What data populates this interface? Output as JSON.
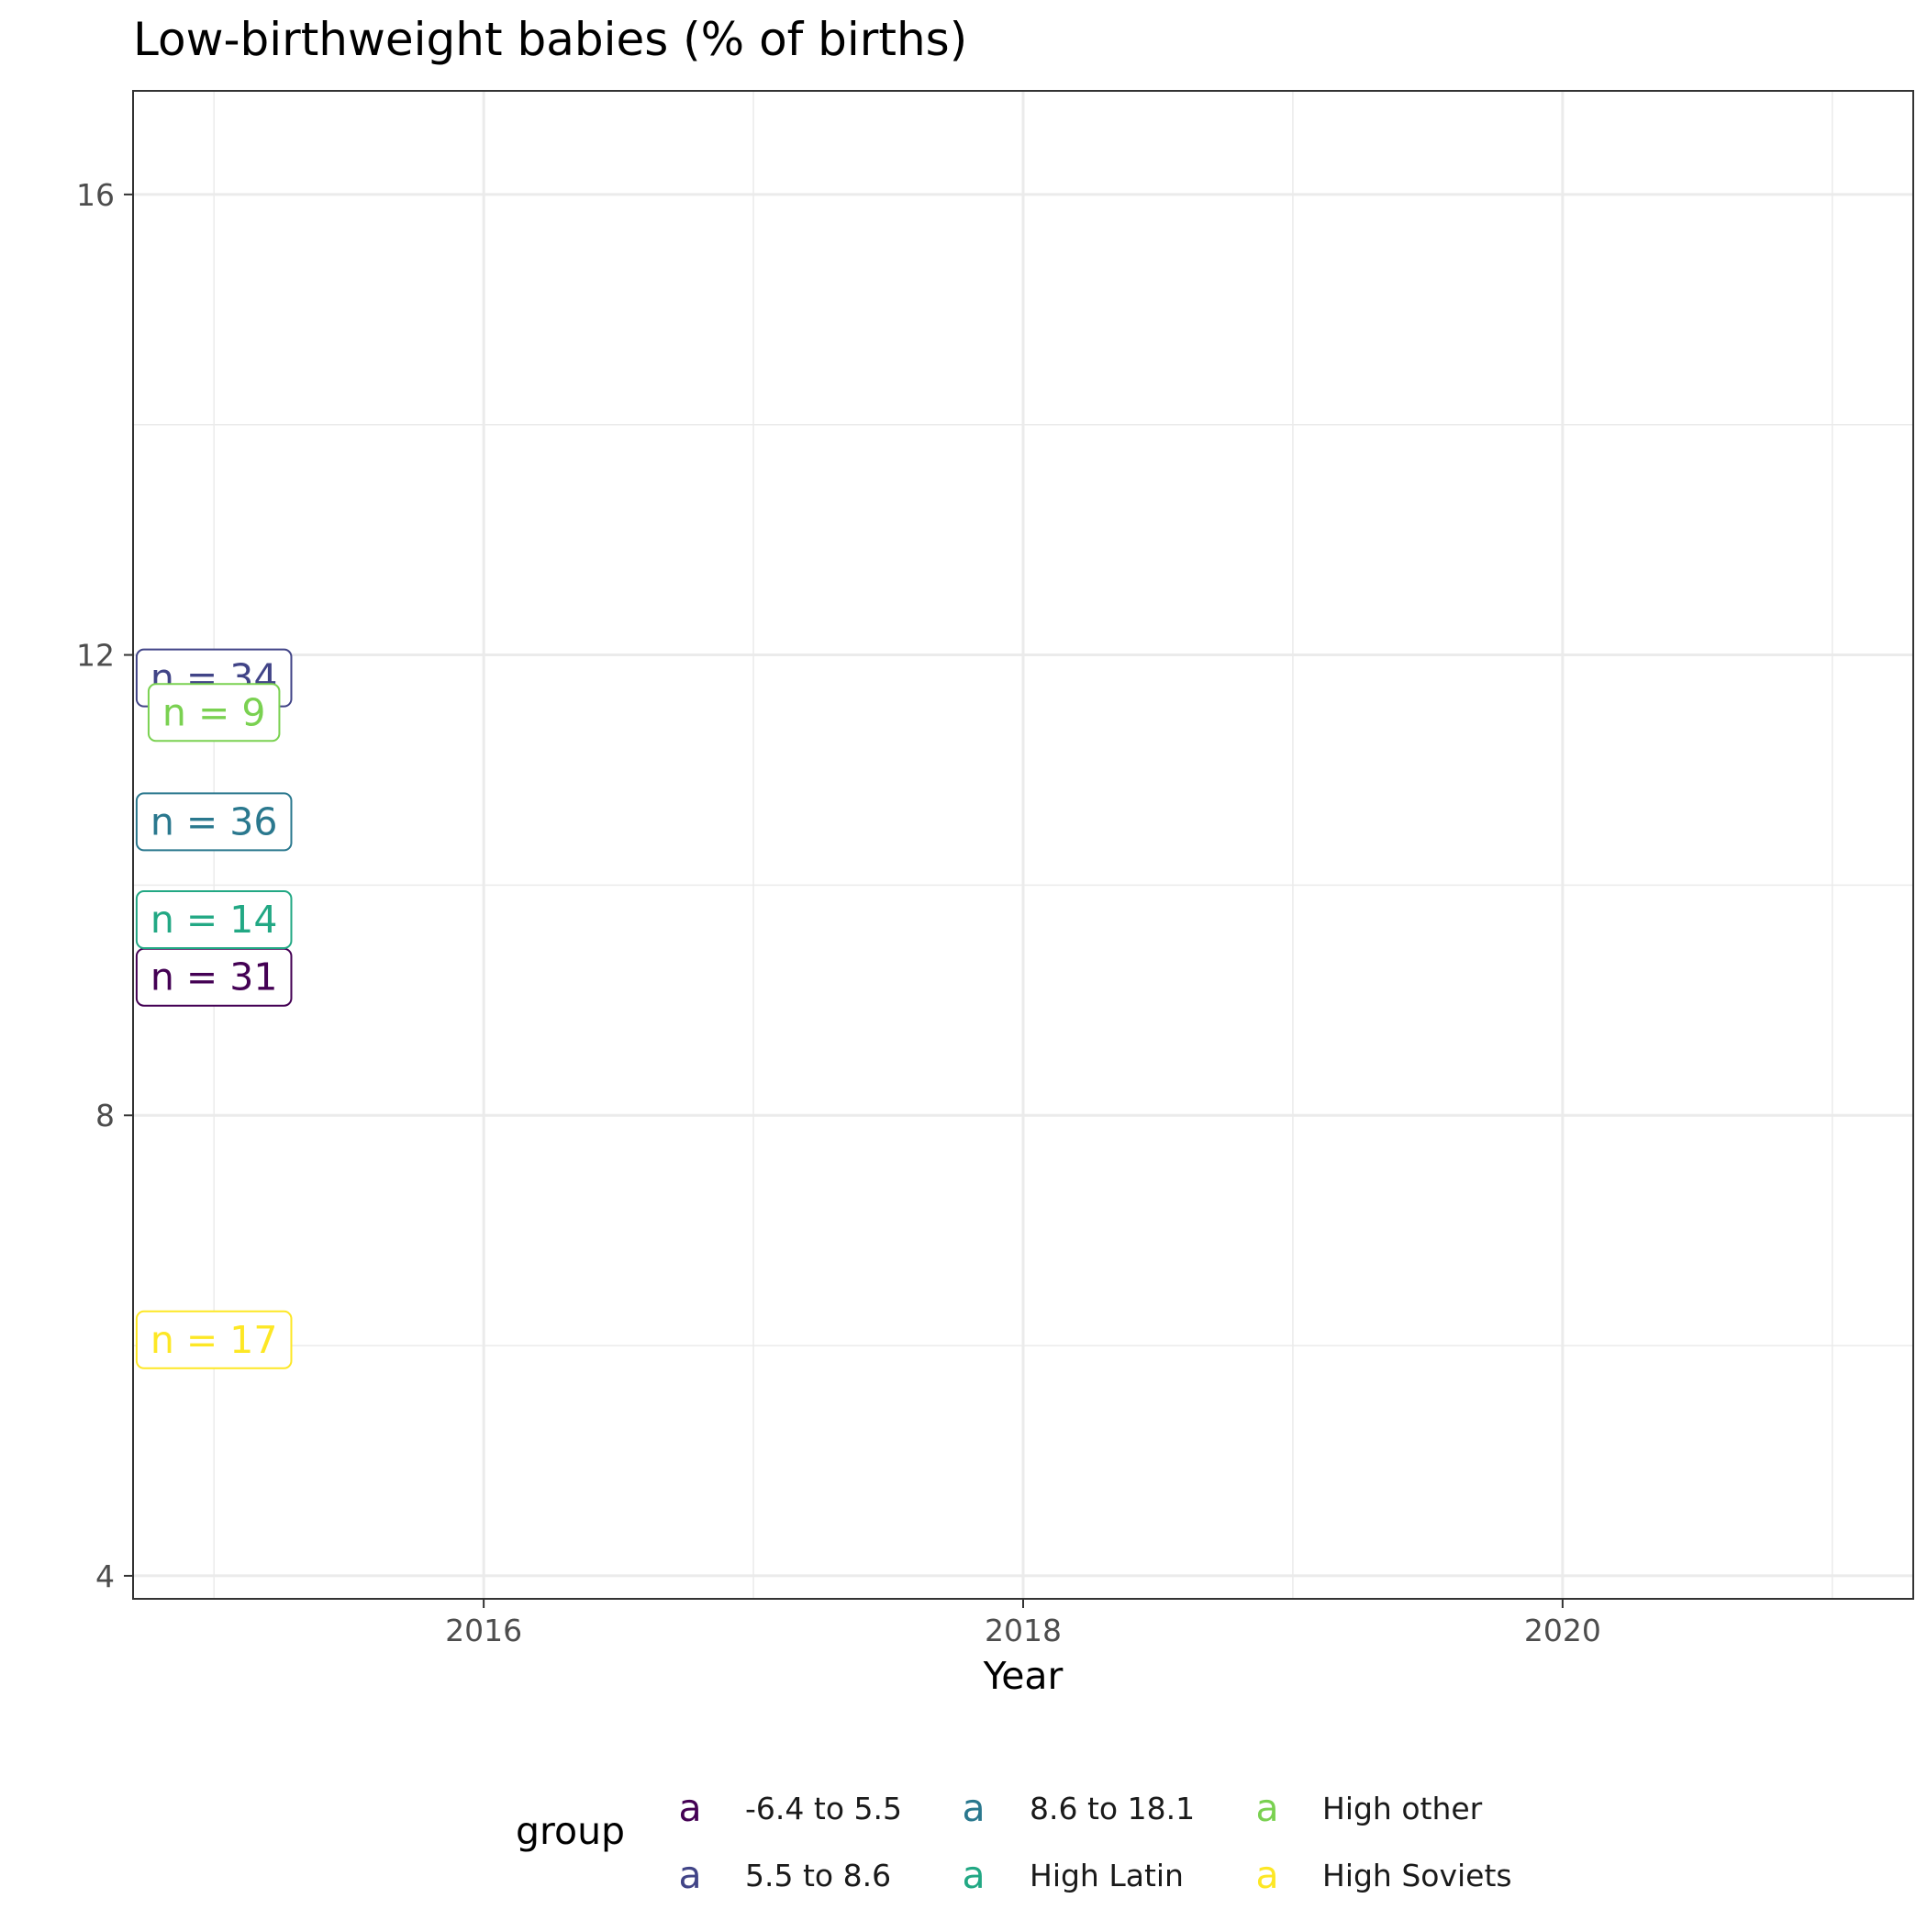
{
  "chart_data": {
    "type": "scatter",
    "title": "Low-birthweight babies (% of births)",
    "xlabel": "Year",
    "ylabel": "",
    "xlim": [
      2014.7,
      2021.3
    ],
    "ylim": [
      3.8,
      16.9
    ],
    "x_ticks": [
      2016,
      2018,
      2020
    ],
    "x_tick_labels": [
      "2016",
      "2018",
      "2020"
    ],
    "x_minor_ticks": [
      2015,
      2017,
      2019,
      2021
    ],
    "y_ticks": [
      4,
      8,
      12,
      16
    ],
    "y_tick_labels": [
      "4",
      "8",
      "12",
      "16"
    ],
    "y_minor_ticks": [
      6,
      10,
      14
    ],
    "grid": true,
    "legend": {
      "title": "group",
      "placement": "bottom",
      "key_glyph": "a",
      "items": [
        {
          "label": "-6.4 to 5.5",
          "color": "#440154"
        },
        {
          "label": "5.5 to 8.6",
          "color": "#414487"
        },
        {
          "label": "8.6 to 18.1",
          "color": "#2A788E"
        },
        {
          "label": "High Latin",
          "color": "#22A884"
        },
        {
          "label": "High other",
          "color": "#7AD151"
        },
        {
          "label": "High Soviets",
          "color": "#FDE725"
        }
      ]
    },
    "annotations": [
      {
        "group": "-6.4 to 5.5",
        "text": "n = 31",
        "x": 2015,
        "y": 9.2,
        "color": "#440154"
      },
      {
        "group": "5.5 to 8.6",
        "text": "n = 34",
        "x": 2015,
        "y": 11.8,
        "color": "#414487"
      },
      {
        "group": "8.6 to 18.1",
        "text": "n = 36",
        "x": 2015,
        "y": 10.55,
        "color": "#2A788E"
      },
      {
        "group": "High Latin",
        "text": "n = 14",
        "x": 2015,
        "y": 9.7,
        "color": "#22A884"
      },
      {
        "group": "High other",
        "text": "n = 9",
        "x": 2015,
        "y": 11.5,
        "color": "#7AD151"
      },
      {
        "group": "High Soviets",
        "text": "n = 17",
        "x": 2015,
        "y": 6.05,
        "color": "#FDE725"
      }
    ]
  }
}
